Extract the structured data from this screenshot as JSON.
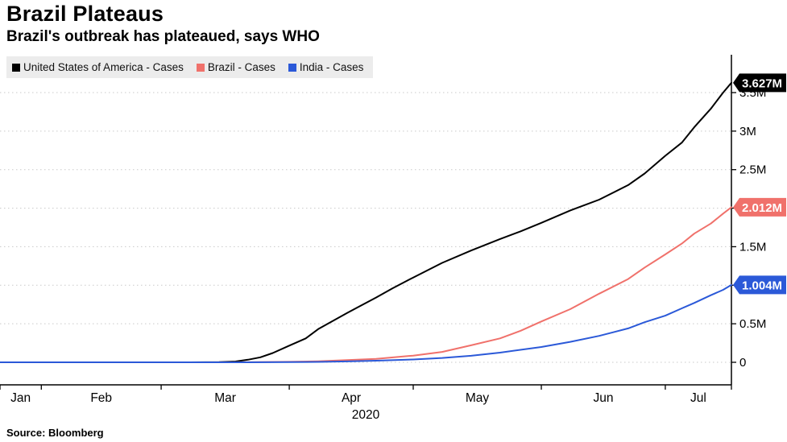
{
  "header": {
    "title": "Brazil Plateaus",
    "subtitle": "Brazil's outbreak has plateaued, says WHO"
  },
  "source": "Source: Bloomberg",
  "colors": {
    "grid": "#c9c9c9",
    "axis": "#000000",
    "legend_bg": "#ececec",
    "tag_text": "#ffffff"
  },
  "chart_data": {
    "type": "line",
    "title": "Brazil Plateaus",
    "subtitle": "Brazil's outbreak has plateaued, says WHO",
    "x_unit": "days since 2020-01-22",
    "x_axis": {
      "year_label": "2020",
      "month_labels": [
        "Jan",
        "Feb",
        "Mar",
        "Apr",
        "May",
        "Jun",
        "Jul"
      ],
      "month_boundaries": [
        0,
        10,
        39,
        70,
        100,
        131,
        161,
        177
      ],
      "range": [
        0,
        177
      ]
    },
    "y_axis": {
      "side": "right",
      "grid": "dotted",
      "ticks": [
        0,
        0.5,
        1,
        1.5,
        2,
        2.5,
        3,
        3.5
      ],
      "tick_labels": [
        "0",
        "0.5M",
        "1M",
        "1.5M",
        "2M",
        "2.5M",
        "3M",
        "3.5M"
      ],
      "unit": "millions of cases",
      "range": [
        0,
        3.95
      ]
    },
    "series": [
      {
        "name": "United States of America - Cases",
        "color": "#000000",
        "end_label": "3.627M",
        "end_value": 3.627,
        "points": [
          [
            0,
            0
          ],
          [
            10,
            8e-06
          ],
          [
            24,
            2e-05
          ],
          [
            39,
            7e-05
          ],
          [
            46,
            0.0005
          ],
          [
            53,
            0.003
          ],
          [
            57,
            0.01
          ],
          [
            60,
            0.033
          ],
          [
            63,
            0.065
          ],
          [
            66,
            0.12
          ],
          [
            70,
            0.216
          ],
          [
            74,
            0.31
          ],
          [
            77,
            0.43
          ],
          [
            84,
            0.64
          ],
          [
            91,
            0.84
          ],
          [
            95,
            0.96
          ],
          [
            100,
            1.1
          ],
          [
            107,
            1.29
          ],
          [
            114,
            1.45
          ],
          [
            121,
            1.6
          ],
          [
            126,
            1.7
          ],
          [
            131,
            1.81
          ],
          [
            138,
            1.97
          ],
          [
            145,
            2.11
          ],
          [
            152,
            2.3
          ],
          [
            156,
            2.45
          ],
          [
            161,
            2.68
          ],
          [
            165,
            2.85
          ],
          [
            168,
            3.05
          ],
          [
            172,
            3.29
          ],
          [
            175,
            3.5
          ],
          [
            177,
            3.627
          ]
        ]
      },
      {
        "name": "Brazil - Cases",
        "color": "#f0716b",
        "end_label": "2.012M",
        "end_value": 2.012,
        "points": [
          [
            0,
            0
          ],
          [
            39,
            2e-06
          ],
          [
            60,
            0.001
          ],
          [
            70,
            0.006
          ],
          [
            77,
            0.014
          ],
          [
            84,
            0.028
          ],
          [
            91,
            0.045
          ],
          [
            100,
            0.087
          ],
          [
            107,
            0.135
          ],
          [
            114,
            0.22
          ],
          [
            121,
            0.31
          ],
          [
            126,
            0.41
          ],
          [
            131,
            0.53
          ],
          [
            138,
            0.69
          ],
          [
            145,
            0.89
          ],
          [
            152,
            1.08
          ],
          [
            156,
            1.23
          ],
          [
            161,
            1.4
          ],
          [
            165,
            1.54
          ],
          [
            168,
            1.67
          ],
          [
            172,
            1.8
          ],
          [
            175,
            1.93
          ],
          [
            177,
            2.012
          ]
        ]
      },
      {
        "name": "India - Cases",
        "color": "#2b59d8",
        "end_label": "1.004M",
        "end_value": 1.004,
        "points": [
          [
            0,
            0
          ],
          [
            39,
            0
          ],
          [
            60,
            0.0005
          ],
          [
            70,
            0.002
          ],
          [
            77,
            0.005
          ],
          [
            84,
            0.012
          ],
          [
            91,
            0.021
          ],
          [
            100,
            0.037
          ],
          [
            107,
            0.056
          ],
          [
            114,
            0.085
          ],
          [
            121,
            0.125
          ],
          [
            131,
            0.198
          ],
          [
            138,
            0.265
          ],
          [
            145,
            0.343
          ],
          [
            152,
            0.44
          ],
          [
            156,
            0.52
          ],
          [
            161,
            0.605
          ],
          [
            165,
            0.7
          ],
          [
            168,
            0.77
          ],
          [
            172,
            0.87
          ],
          [
            175,
            0.94
          ],
          [
            177,
            1.004
          ]
        ]
      }
    ],
    "legend_position": "top-left"
  }
}
